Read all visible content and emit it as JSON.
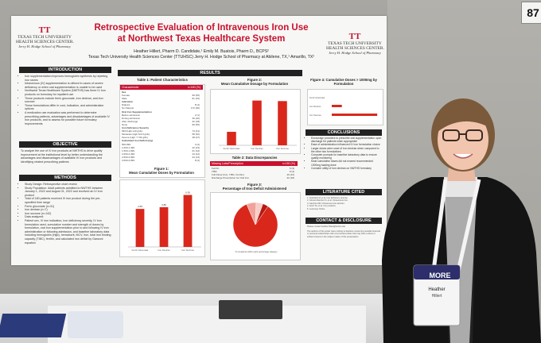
{
  "booth_number": "87",
  "poster": {
    "logo_left": {
      "line1": "TEXAS TECH UNIVERSITY",
      "line2": "HEALTH SCIENCES CENTER.",
      "line3": "Jerry H. Hodge School of Pharmacy"
    },
    "logo_right": {
      "line1": "TEXAS TECH UNIVERSITY",
      "line2": "HEALTH SCIENCES CENTER.",
      "line3": "Jerry H. Hodge School of Pharmacy"
    },
    "title_line1": "Retrospective Evaluation of Intravenous Iron Use",
    "title_line2": "at Northwest Texas Healthcare System",
    "authors": "Heather Hillert, Pharm D. Candidate,¹ Emily M. Buatois, Pharm D., BCPS²",
    "affiliation": "Texas Tech University Health Sciences Center (TTUHSC) Jerry H. Hodge School of Pharmacy at Abilene, TX,¹ Amarillo, TX²",
    "introduction": {
      "header": "INTRODUCTION",
      "bullets": [
        "Iron supplementation improves hemoglobin synthesis by repleting iron stores",
        "Intravenous (IV) supplementation is utilized in cases of severe deficiency or when oral supplementation is unable to be used",
        "Northwest Texas Healthcare System (NWTHS) has three IV iron products on formulary for inpatient use",
        "These products include ferric gluconate, iron dextran, and iron sucrose",
        "These formulations differ in cost, indication, and administration options",
        "A medication use evaluation was performed to determine prescribing patterns, advantages and disadvantages of available IV iron products, and to assess for possible future formulary improvements"
      ]
    },
    "objective": {
      "header": "OBJECTIVE",
      "text": "To analyze the use of IV iron products at NWTHS to drive quality improvement at the institutional level by better understanding the advantages and disadvantages of available IV iron products and identifying related prescribing patterns"
    },
    "methods": {
      "header": "METHODS",
      "bullets": [
        "Study Design: Retrospective chart review",
        "Study Population: Adult patients admitted to NWTHS between January 1, 2022 and August 31, 2022 and received an IV iron product",
        "Total of 180 patients received IV iron product during the pre-specified time range",
        "Ferric gluconate (n=31)",
        "Iron dextran (n=7)",
        "Iron sucrose (n=142)",
        "Data analyzed:",
        "Patient sex, IV iron indication, iron deficiency severity, IV iron formulation used, cumulative number and strength of doses by formulation, oral iron supplementation prior to and following IV iron administration or following admission, and baseline laboratory data including hemoglobin (Hgb), hematocrit, MCV, iron, total iron binding capacity (TIBC), ferritin, and calculated iron deficit by Ganzoni equation"
      ]
    },
    "results": {
      "header": "RESULTS",
      "table1": {
        "title": "Table 1: Patient Characteristics",
        "head_label": "Characteristic",
        "head_value": "n=180 (%)",
        "rows": [
          [
            "Sex",
            ""
          ],
          [
            "Female",
            "99 (55)"
          ],
          [
            "Male",
            "81 (45)"
          ],
          [
            "Indication",
            ""
          ],
          [
            "Dialysis",
            "8 (4)"
          ],
          [
            "No Dialysis",
            "172 (96)"
          ],
          [
            "Oral Iron Supplementation",
            ""
          ],
          [
            "Before admission",
            "2 (1)"
          ],
          [
            "During admission",
            "36 (20)"
          ],
          [
            "After discharge",
            "32 (18)"
          ],
          [
            "None",
            "99 (55)"
          ],
          [
            "Iron Deficiency Severity",
            ""
          ],
          [
            "Mild (Hgb ≥10 g/dL)",
            "74 (41)"
          ],
          [
            "Moderate (Hgb 8-9.9 g/dL)",
            "58 (32)"
          ],
          [
            "Severe (Hgb <7.99 g/dL)",
            "48 (27)"
          ],
          [
            "Calculated Iron Deficit (mg)",
            ""
          ],
          [
            "500-999",
            "3 (2)"
          ],
          [
            "1,000-1,499",
            "42 (23)"
          ],
          [
            "1,500-1,999",
            "61 (34)"
          ],
          [
            "2,000-2,499",
            "43 (24)"
          ],
          [
            "2,500-2,999",
            "23 (13)"
          ],
          [
            "3,000-3,999",
            "8 (4)"
          ]
        ]
      },
      "figure1_label": "Figure 1:",
      "figure1_title": "Mean Cumulative Doses by Formulation",
      "figure2_label": "Figure 2:",
      "figure2_title": "Mean Cumulative Dosage by Formulation",
      "figure3_label": "Figure 3:",
      "figure3_title": "Percentage of Iron Deficit Administered",
      "figure3_caption": "% of patients within each percentage category",
      "figure4_title": "Figure 4: Cumulative Doses > 1000mg by Formulation",
      "table2": {
        "title": "Table 2: Data Discrepancies",
        "head_label": "Missing Labs/Prescription",
        "head_value": "n=180 (%)",
        "rows": [
          [
            "Ferritin",
            "6 (3)"
          ],
          [
            "TIBC",
            "8 (4)"
          ],
          [
            "Full Panel (Iron, TIBC, Ferritin)",
            "40 (22)"
          ],
          [
            "Discharge Prescription for Oral Iron",
            "32 (18)"
          ]
        ]
      }
    },
    "conclusions": {
      "header": "CONCLUSIONS",
      "bullets": [
        "Encourage providers to prescribe oral supplementation upon discharge for patients when appropriate",
        "Ease of administration influenced IV iron formulation choice",
        "Larger doses were used of iron dextran when compared to the other two formulations",
        "Computer prompts for baseline laboratory data to ensure quality monitoring",
        "Most cumulative doses did not exceed recommended 1000mg loading dose",
        "Consider utility of iron dextran on NWTHS formulary"
      ]
    },
    "literature": {
      "header": "LITERATURE CITED",
      "items": [
        "1. Auerbach M, et al. Iron deficiency anemia.",
        "2. Gómez-Ramírez S, et al. Intravenous iron.",
        "3. Ganzoni AM. Intravenous iron-dextran.",
        "4. Koch TA, et al. Iron products.",
        "5. Lexicomp Online."
      ]
    },
    "contact": {
      "header": "CONTACT & DISCLOSURE",
      "email_line": "Please contact heather.hillert@ttuhsc.edu",
      "disclosure": "The authors of this poster have nothing to disclose concerning possible financial or personal relationships with commercial entities that may have a direct or indirect interest in the subject matter of this presentation."
    }
  },
  "badge": {
    "event": "MORE",
    "name": "Heather",
    "name2": "Hillert"
  },
  "chart_data": [
    {
      "type": "bar",
      "title": "Mean Cumulative Doses by Formulation",
      "categories": [
        "Ferric Gluconate",
        "Iron Dextran",
        "Iron Sucrose"
      ],
      "values": [
        4.65,
        4.86,
        6.36
      ],
      "color": "#d9271c"
    },
    {
      "type": "bar",
      "title": "Mean Cumulative Dosage by Formulation",
      "categories": [
        "Ferric Gluconate",
        "Iron Dextran",
        "Iron Sucrose"
      ],
      "values": [
        250,
        830,
        820
      ],
      "color": "#d9271c"
    },
    {
      "type": "bar",
      "title": "Cumulative Doses > 1000mg by Formulation",
      "categories": [
        "Ferric Gluconate",
        "Iron Dextran",
        "Iron Sucrose"
      ],
      "values": [
        0,
        2,
        9
      ],
      "color": "#d9271c"
    },
    {
      "type": "pie",
      "title": "Percentage of Iron Deficit Administered",
      "values": [
        84,
        7,
        5,
        4
      ],
      "colors": [
        "#d9271c",
        "#f0a29b",
        "#f7cdc8",
        "#b41a12"
      ]
    }
  ]
}
